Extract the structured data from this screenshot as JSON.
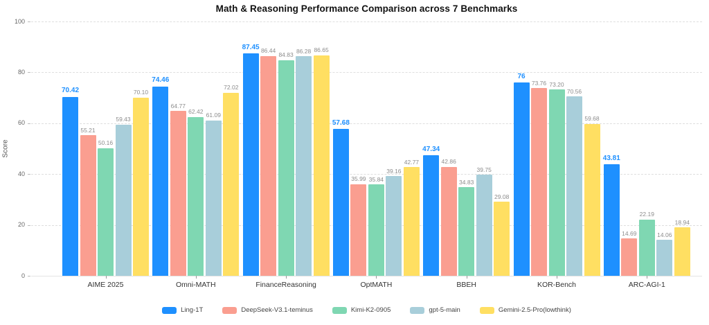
{
  "title": "Math & Reasoning Performance Comparison across 7 Benchmarks",
  "chart_data": {
    "type": "bar",
    "title": "Math & Reasoning Performance Comparison across 7 Benchmarks",
    "xlabel": "",
    "ylabel": "Score",
    "ylim": [
      0,
      100
    ],
    "yticks": [
      0,
      20,
      40,
      60,
      80,
      100
    ],
    "grid": "horizontal-dashed",
    "legend_position": "bottom",
    "categories": [
      "AIME 2025",
      "Omni-MATH",
      "FinanceReasoning",
      "OptMATH",
      "BBEH",
      "KOR-Bench",
      "ARC-AGI-1"
    ],
    "series": [
      {
        "name": "Ling-1T",
        "color": "#1E90FF",
        "label_color": "#1E90FF",
        "label_bold": true,
        "values": [
          70.42,
          74.46,
          87.45,
          57.68,
          47.34,
          76,
          43.81
        ],
        "value_labels": [
          "70.42",
          "74.46",
          "87.45",
          "57.68",
          "47.34",
          "76",
          "43.81"
        ]
      },
      {
        "name": "DeepSeek-V3.1-teminus",
        "color": "#FA9E90",
        "label_color": "#8c8c8c",
        "label_bold": false,
        "values": [
          55.21,
          64.77,
          86.44,
          35.99,
          42.86,
          73.76,
          14.69
        ],
        "value_labels": [
          "55.21",
          "64.77",
          "86.44",
          "35.99",
          "42.86",
          "73.76",
          "14.69"
        ]
      },
      {
        "name": "Kimi-K2-0905",
        "color": "#7FD7B2",
        "label_color": "#8c8c8c",
        "label_bold": false,
        "values": [
          50.16,
          62.42,
          84.83,
          35.84,
          34.83,
          73.2,
          22.19
        ],
        "value_labels": [
          "50.16",
          "62.42",
          "84.83",
          "35.84",
          "34.83",
          "73.20",
          "22.19"
        ]
      },
      {
        "name": "gpt-5-main",
        "color": "#A8CEDA",
        "label_color": "#8c8c8c",
        "label_bold": false,
        "values": [
          59.43,
          61.09,
          86.28,
          39.16,
          39.75,
          70.56,
          14.06
        ],
        "value_labels": [
          "59.43",
          "61.09",
          "86.28",
          "39.16",
          "39.75",
          "70.56",
          "14.06"
        ]
      },
      {
        "name": "Gemini-2.5-Pro(lowthink)",
        "color": "#FFDF62",
        "label_color": "#8c8c8c",
        "label_bold": false,
        "values": [
          70.1,
          72.02,
          86.65,
          42.77,
          29.08,
          59.68,
          18.94
        ],
        "value_labels": [
          "70.10",
          "72.02",
          "86.65",
          "42.77",
          "29.08",
          "59.68",
          "18.94"
        ]
      }
    ],
    "colors": {
      "grid": "#dedede",
      "axis_text": "#666666",
      "category_text": "#333333",
      "value_label_gray": "#8c8c8c",
      "highlight_blue": "#1E90FF",
      "background": "#ffffff"
    }
  }
}
